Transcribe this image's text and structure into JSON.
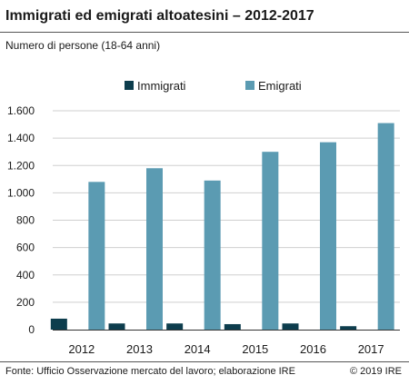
{
  "header": {
    "title": "Immigrati ed emigrati altoatesini – 2012-2017",
    "subtitle": "Numero di persone (18-64 anni)"
  },
  "footer": {
    "source": "Fonte: Ufficio Osservazione mercato del lavoro; elaborazione IRE",
    "copyright": "© 2019 IRE"
  },
  "chart_data": {
    "type": "bar",
    "title": "Immigrati ed emigrati altoatesini – 2012-2017",
    "subtitle": "Numero di persone (18-64 anni)",
    "categories": [
      "2012",
      "2013",
      "2014",
      "2015",
      "2016",
      "2017"
    ],
    "series": [
      {
        "name": "Immigrati",
        "color": "#0d3d4d",
        "values": [
          80,
          45,
          45,
          40,
          45,
          25
        ]
      },
      {
        "name": "Emigrati",
        "color": "#5b9bb2",
        "values": [
          1080,
          1180,
          1090,
          1300,
          1370,
          1510
        ]
      }
    ],
    "ylim": [
      0,
      1600
    ],
    "yticks": [
      0,
      200,
      400,
      600,
      800,
      1000,
      1200,
      1400,
      1600
    ],
    "ytick_labels": [
      "0",
      "200",
      "400",
      "600",
      "800",
      "1.000",
      "1.200",
      "1.400",
      "1.600"
    ],
    "grid": true,
    "legend_position": "top-center"
  }
}
